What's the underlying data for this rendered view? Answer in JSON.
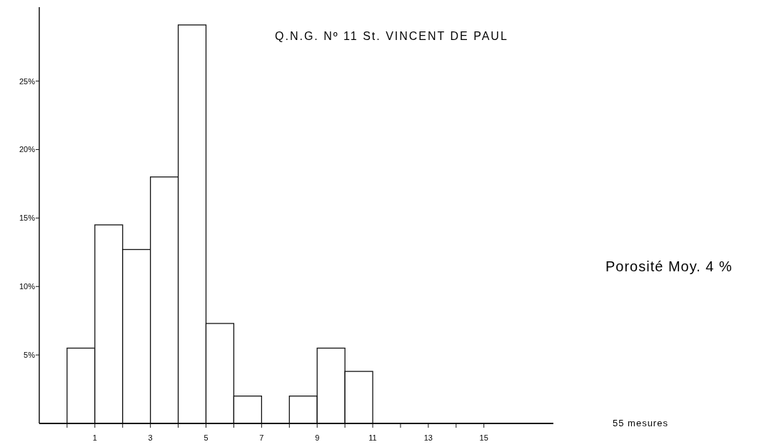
{
  "chart_data": {
    "type": "histogram",
    "title": "Q.N.G. Nº 11 St. VINCENT DE PAUL",
    "bins": [
      0,
      1,
      2,
      3,
      4,
      5,
      6,
      7,
      8,
      9,
      10,
      11
    ],
    "values": [
      5.5,
      14.5,
      12.7,
      18.0,
      29.1,
      7.3,
      2.0,
      0,
      2.0,
      5.5,
      3.8
    ],
    "color": "#ffffff",
    "xlim": [
      -1,
      17.5
    ],
    "xticks": [
      {
        "value": 0,
        "label": null
      },
      1,
      {
        "value": 2,
        "label": null
      },
      3,
      {
        "value": 4,
        "label": null
      },
      5,
      {
        "value": 6,
        "label": null
      },
      7,
      {
        "value": 8,
        "label": null
      },
      9,
      {
        "value": 10,
        "label": null
      },
      11,
      {
        "value": 12,
        "label": null
      },
      13,
      {
        "value": 14,
        "label": null
      },
      15
    ],
    "ylim": [
      0,
      30.4
    ],
    "yticks": [
      {
        "value": 5,
        "label": "5%"
      },
      {
        "value": 10,
        "label": "10%"
      },
      {
        "value": 15,
        "label": "15%"
      },
      {
        "value": 20,
        "label": "20%"
      },
      {
        "value": 25,
        "label": "25%"
      }
    ],
    "annotations": [
      "Porosité Moy. 4 %",
      "55 mesures"
    ],
    "grid": false
  }
}
